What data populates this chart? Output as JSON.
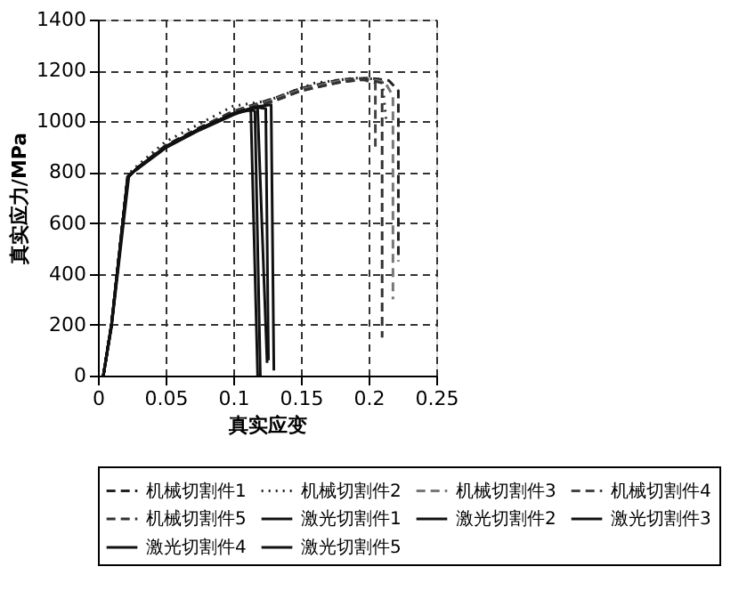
{
  "chart_data": {
    "type": "line",
    "xlabel": "真实应变",
    "ylabel": "真实应力/MPa",
    "xlim": [
      0,
      0.25
    ],
    "ylim": [
      0,
      1400
    ],
    "xticks": [
      0,
      0.05,
      0.1,
      0.15,
      0.2,
      0.25
    ],
    "yticks": [
      0,
      200,
      400,
      600,
      800,
      1000,
      1200,
      1400
    ],
    "grid": true,
    "legend": "bottom",
    "marker": "none",
    "series": [
      {
        "name": "机械切割件1",
        "color": "#222222",
        "line_style": "dashed",
        "x": [
          0.004,
          0.01,
          0.022,
          0.03,
          0.05,
          0.075,
          0.1,
          0.13,
          0.15,
          0.18,
          0.2,
          0.215,
          0.222,
          0.222
        ],
        "values": [
          0,
          200,
          780,
          820,
          905,
          975,
          1040,
          1090,
          1130,
          1165,
          1170,
          1160,
          1120,
          450
        ]
      },
      {
        "name": "机械切割件2",
        "color": "#222222",
        "line_style": "dotted",
        "x": [
          0.004,
          0.01,
          0.022,
          0.03,
          0.05,
          0.075,
          0.1,
          0.125,
          0.14,
          0.16,
          0.19,
          0.21,
          0.213
        ],
        "values": [
          0,
          200,
          790,
          830,
          920,
          990,
          1060,
          1080,
          1110,
          1150,
          1170,
          1165,
          1000
        ]
      },
      {
        "name": "机械切割件3",
        "color": "#777777",
        "line_style": "dashed",
        "x": [
          0.004,
          0.01,
          0.022,
          0.03,
          0.05,
          0.075,
          0.1,
          0.13,
          0.15,
          0.18,
          0.2,
          0.212,
          0.218,
          0.218
        ],
        "values": [
          0,
          200,
          780,
          820,
          900,
          970,
          1035,
          1085,
          1125,
          1160,
          1165,
          1155,
          1100,
          300
        ]
      },
      {
        "name": "机械切割件4",
        "color": "#444444",
        "line_style": "dashed",
        "x": [
          0.004,
          0.01,
          0.022,
          0.03,
          0.05,
          0.075,
          0.1,
          0.13,
          0.15,
          0.18,
          0.195,
          0.205,
          0.205
        ],
        "values": [
          0,
          200,
          780,
          820,
          900,
          970,
          1035,
          1080,
          1120,
          1155,
          1165,
          1150,
          900
        ]
      },
      {
        "name": "机械切割件5",
        "color": "#333333",
        "line_style": "dashed",
        "x": [
          0.004,
          0.01,
          0.022,
          0.03,
          0.05,
          0.075,
          0.1,
          0.13,
          0.15,
          0.18,
          0.2,
          0.21,
          0.21
        ],
        "values": [
          0,
          200,
          780,
          820,
          900,
          970,
          1035,
          1080,
          1120,
          1155,
          1165,
          1150,
          150
        ]
      },
      {
        "name": "激光切割件1",
        "color": "#111111",
        "line_style": "solid",
        "x": [
          0.004,
          0.01,
          0.022,
          0.03,
          0.05,
          0.075,
          0.1,
          0.113,
          0.116,
          0.12
        ],
        "values": [
          0,
          200,
          780,
          820,
          900,
          970,
          1030,
          1045,
          1040,
          0
        ]
      },
      {
        "name": "激光切割件2",
        "color": "#111111",
        "line_style": "solid",
        "x": [
          0.004,
          0.01,
          0.023,
          0.03,
          0.05,
          0.075,
          0.1,
          0.11,
          0.113,
          0.118
        ],
        "values": [
          0,
          190,
          790,
          815,
          895,
          965,
          1025,
          1045,
          1040,
          0
        ]
      },
      {
        "name": "激光切割件3",
        "color": "#111111",
        "line_style": "solid",
        "x": [
          0.004,
          0.01,
          0.022,
          0.03,
          0.05,
          0.075,
          0.1,
          0.115,
          0.118,
          0.125
        ],
        "values": [
          0,
          200,
          780,
          820,
          900,
          970,
          1030,
          1055,
          1050,
          50
        ]
      },
      {
        "name": "激光切割件4",
        "color": "#111111",
        "line_style": "solid",
        "x": [
          0.004,
          0.01,
          0.022,
          0.03,
          0.05,
          0.075,
          0.1,
          0.12,
          0.128,
          0.13
        ],
        "values": [
          0,
          200,
          780,
          820,
          900,
          970,
          1030,
          1060,
          1065,
          20
        ]
      },
      {
        "name": "激光切割件5",
        "color": "#111111",
        "line_style": "solid",
        "x": [
          0.004,
          0.01,
          0.022,
          0.03,
          0.05,
          0.075,
          0.1,
          0.117,
          0.124,
          0.126
        ],
        "values": [
          0,
          200,
          780,
          820,
          900,
          970,
          1030,
          1055,
          1050,
          60
        ]
      }
    ]
  }
}
